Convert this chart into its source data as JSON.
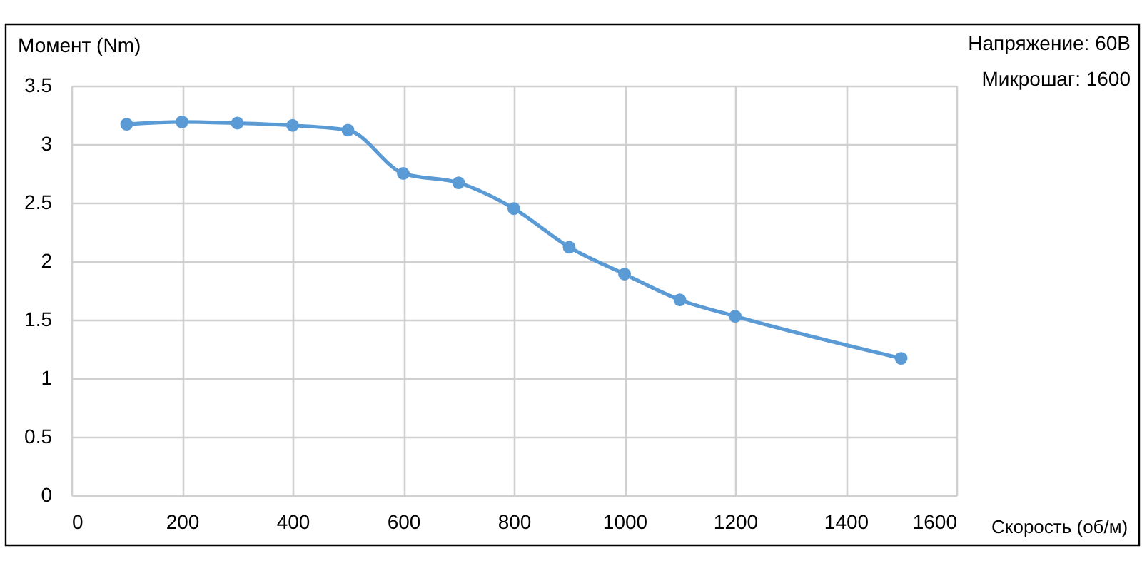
{
  "chart_data": {
    "type": "line",
    "ylabel": "Момент (Nm)",
    "xlabel": "Скорость (об/м)",
    "annotations": [
      "Напряжение: 60В",
      "Микрошаг: 1600"
    ],
    "x": [
      100,
      200,
      300,
      400,
      500,
      600,
      700,
      800,
      900,
      1000,
      1100,
      1200,
      1500
    ],
    "series": [
      {
        "color": "#5b9bd5",
        "values": [
          3.17,
          3.19,
          3.18,
          3.16,
          3.12,
          2.75,
          2.67,
          2.45,
          2.12,
          1.89,
          1.67,
          1.53,
          1.17
        ]
      }
    ],
    "xlim": [
      0,
      1600
    ],
    "xticks": [
      0,
      200,
      400,
      600,
      800,
      1000,
      1200,
      1400,
      1600
    ],
    "ylim": [
      0,
      3.5
    ],
    "yticks": [
      0,
      0.5,
      1,
      1.5,
      2,
      2.5,
      3,
      3.5
    ],
    "grid": true,
    "marker": "circle",
    "line_style": "solid"
  }
}
